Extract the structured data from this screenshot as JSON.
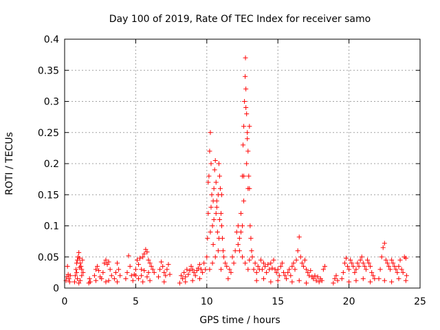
{
  "chart_data": {
    "type": "scatter",
    "title": "Day 100 of 2019, Rate Of TEC Index for receiver samo",
    "xlabel": "GPS time / hours",
    "ylabel": "ROTI / TECUs",
    "xlim": [
      0,
      25
    ],
    "ylim": [
      0,
      0.4
    ],
    "xticks": [
      0,
      5,
      10,
      15,
      20,
      25
    ],
    "xtick_labels": [
      "0",
      "5",
      "10",
      "15",
      "20",
      "25"
    ],
    "yticks": [
      0,
      0.05,
      0.1,
      0.15,
      0.2,
      0.25,
      0.3,
      0.35,
      0.4
    ],
    "ytick_labels": [
      "0",
      "0.05",
      "0.1",
      "0.15",
      "0.2",
      "0.25",
      "0.3",
      "0.35",
      "0.4"
    ],
    "grid": true,
    "marker": "+",
    "color": "#ff0000",
    "series": [
      {
        "name": "ROTI",
        "points": [
          [
            0.1,
            0.012
          ],
          [
            0.15,
            0.018
          ],
          [
            0.2,
            0.035
          ],
          [
            0.25,
            0.022
          ],
          [
            0.3,
            0.015
          ],
          [
            0.35,
            0.01
          ],
          [
            0.4,
            0.02
          ],
          [
            0.7,
            0.01
          ],
          [
            0.75,
            0.02
          ],
          [
            0.8,
            0.03
          ],
          [
            0.85,
            0.04
          ],
          [
            0.9,
            0.045
          ],
          [
            0.95,
            0.05
          ],
          [
            1.0,
            0.057
          ],
          [
            1.05,
            0.048
          ],
          [
            1.1,
            0.04
          ],
          [
            1.15,
            0.035
          ],
          [
            1.2,
            0.03
          ],
          [
            1.25,
            0.045
          ],
          [
            1.3,
            0.025
          ],
          [
            0.9,
            0.015
          ],
          [
            1.0,
            0.008
          ],
          [
            1.1,
            0.012
          ],
          [
            1.2,
            0.02
          ],
          [
            0.85,
            0.025
          ],
          [
            1.05,
            0.033
          ],
          [
            1.7,
            0.008
          ],
          [
            1.75,
            0.015
          ],
          [
            1.8,
            0.01
          ],
          [
            2.1,
            0.02
          ],
          [
            2.2,
            0.03
          ],
          [
            2.3,
            0.035
          ],
          [
            2.4,
            0.028
          ],
          [
            2.5,
            0.018
          ],
          [
            2.2,
            0.012
          ],
          [
            2.6,
            0.015
          ],
          [
            2.7,
            0.025
          ],
          [
            2.8,
            0.04
          ],
          [
            2.9,
            0.045
          ],
          [
            3.0,
            0.038
          ],
          [
            3.1,
            0.042
          ],
          [
            3.2,
            0.03
          ],
          [
            3.3,
            0.02
          ],
          [
            2.9,
            0.01
          ],
          [
            3.1,
            0.012
          ],
          [
            3.5,
            0.015
          ],
          [
            3.6,
            0.025
          ],
          [
            3.7,
            0.04
          ],
          [
            3.8,
            0.03
          ],
          [
            3.9,
            0.02
          ],
          [
            3.7,
            0.01
          ],
          [
            4.3,
            0.015
          ],
          [
            4.4,
            0.025
          ],
          [
            4.5,
            0.052
          ],
          [
            4.6,
            0.035
          ],
          [
            4.7,
            0.02
          ],
          [
            4.8,
            0.012
          ],
          [
            4.9,
            0.022
          ],
          [
            5.0,
            0.03
          ],
          [
            5.1,
            0.045
          ],
          [
            5.2,
            0.038
          ],
          [
            5.3,
            0.048
          ],
          [
            5.4,
            0.02
          ],
          [
            5.5,
            0.05
          ],
          [
            5.6,
            0.055
          ],
          [
            5.7,
            0.062
          ],
          [
            5.8,
            0.058
          ],
          [
            5.9,
            0.045
          ],
          [
            6.0,
            0.04
          ],
          [
            6.1,
            0.035
          ],
          [
            6.2,
            0.03
          ],
          [
            6.3,
            0.025
          ],
          [
            5.2,
            0.015
          ],
          [
            5.5,
            0.01
          ],
          [
            5.8,
            0.018
          ],
          [
            6.0,
            0.012
          ],
          [
            5.0,
            0.02
          ],
          [
            5.4,
            0.03
          ],
          [
            5.6,
            0.028
          ],
          [
            5.9,
            0.025
          ],
          [
            6.6,
            0.018
          ],
          [
            6.7,
            0.03
          ],
          [
            6.8,
            0.042
          ],
          [
            6.9,
            0.035
          ],
          [
            7.0,
            0.025
          ],
          [
            7.1,
            0.02
          ],
          [
            7.2,
            0.03
          ],
          [
            7.3,
            0.038
          ],
          [
            7.4,
            0.022
          ],
          [
            7.0,
            0.01
          ],
          [
            8.1,
            0.008
          ],
          [
            8.2,
            0.02
          ],
          [
            8.3,
            0.015
          ],
          [
            8.4,
            0.025
          ],
          [
            8.5,
            0.018
          ],
          [
            8.6,
            0.03
          ],
          [
            8.7,
            0.022
          ],
          [
            8.8,
            0.028
          ],
          [
            8.9,
            0.035
          ],
          [
            9.0,
            0.03
          ],
          [
            9.1,
            0.025
          ],
          [
            9.2,
            0.02
          ],
          [
            9.3,
            0.028
          ],
          [
            9.4,
            0.032
          ],
          [
            9.5,
            0.038
          ],
          [
            9.6,
            0.03
          ],
          [
            9.7,
            0.025
          ],
          [
            9.8,
            0.04
          ],
          [
            9.9,
            0.03
          ],
          [
            8.5,
            0.01
          ],
          [
            9.0,
            0.012
          ],
          [
            9.5,
            0.015
          ],
          [
            10.0,
            0.05
          ],
          [
            10.05,
            0.08
          ],
          [
            10.1,
            0.12
          ],
          [
            10.15,
            0.18
          ],
          [
            10.2,
            0.22
          ],
          [
            10.25,
            0.25
          ],
          [
            10.3,
            0.2
          ],
          [
            10.35,
            0.15
          ],
          [
            10.4,
            0.1
          ],
          [
            10.45,
            0.14
          ],
          [
            10.5,
            0.16
          ],
          [
            10.55,
            0.19
          ],
          [
            10.6,
            0.205
          ],
          [
            10.65,
            0.17
          ],
          [
            10.7,
            0.13
          ],
          [
            10.75,
            0.09
          ],
          [
            10.8,
            0.15
          ],
          [
            10.85,
            0.2
          ],
          [
            10.9,
            0.18
          ],
          [
            10.95,
            0.16
          ],
          [
            11.0,
            0.12
          ],
          [
            11.05,
            0.1
          ],
          [
            11.1,
            0.08
          ],
          [
            11.15,
            0.06
          ],
          [
            11.2,
            0.05
          ],
          [
            11.3,
            0.04
          ],
          [
            11.4,
            0.035
          ],
          [
            10.2,
            0.03
          ],
          [
            10.4,
            0.04
          ],
          [
            10.6,
            0.05
          ],
          [
            10.8,
            0.06
          ],
          [
            11.0,
            0.03
          ],
          [
            10.3,
            0.13
          ],
          [
            10.5,
            0.11
          ],
          [
            10.7,
            0.14
          ],
          [
            10.9,
            0.11
          ],
          [
            11.05,
            0.15
          ],
          [
            10.1,
            0.17
          ],
          [
            10.25,
            0.09
          ],
          [
            10.45,
            0.07
          ],
          [
            10.65,
            0.12
          ],
          [
            10.85,
            0.08
          ],
          [
            11.5,
            0.015
          ],
          [
            11.6,
            0.03
          ],
          [
            11.7,
            0.025
          ],
          [
            11.8,
            0.05
          ],
          [
            11.9,
            0.04
          ],
          [
            12.0,
            0.06
          ],
          [
            12.1,
            0.09
          ],
          [
            12.2,
            0.07
          ],
          [
            12.3,
            0.08
          ],
          [
            12.4,
            0.12
          ],
          [
            12.5,
            0.18
          ],
          [
            12.55,
            0.23
          ],
          [
            12.6,
            0.26
          ],
          [
            12.65,
            0.3
          ],
          [
            12.7,
            0.34
          ],
          [
            12.72,
            0.37
          ],
          [
            12.75,
            0.32
          ],
          [
            12.8,
            0.28
          ],
          [
            12.85,
            0.25
          ],
          [
            12.9,
            0.22
          ],
          [
            12.95,
            0.18
          ],
          [
            13.0,
            0.16
          ],
          [
            13.05,
            0.1
          ],
          [
            13.1,
            0.08
          ],
          [
            13.15,
            0.06
          ],
          [
            13.2,
            0.05
          ],
          [
            12.5,
            0.1
          ],
          [
            12.6,
            0.14
          ],
          [
            12.8,
            0.2
          ],
          [
            12.9,
            0.16
          ],
          [
            12.3,
            0.06
          ],
          [
            12.5,
            0.05
          ],
          [
            12.7,
            0.04
          ],
          [
            12.9,
            0.03
          ],
          [
            13.0,
            0.045
          ],
          [
            12.6,
            0.18
          ],
          [
            12.75,
            0.29
          ],
          [
            12.85,
            0.24
          ],
          [
            13.0,
            0.26
          ],
          [
            12.4,
            0.09
          ],
          [
            12.2,
            0.1
          ],
          [
            13.3,
            0.03
          ],
          [
            13.4,
            0.04
          ],
          [
            13.5,
            0.025
          ],
          [
            13.6,
            0.035
          ],
          [
            13.7,
            0.03
          ],
          [
            13.8,
            0.045
          ],
          [
            13.9,
            0.03
          ],
          [
            14.0,
            0.04
          ],
          [
            14.1,
            0.035
          ],
          [
            14.2,
            0.025
          ],
          [
            14.3,
            0.038
          ],
          [
            14.4,
            0.03
          ],
          [
            14.5,
            0.04
          ],
          [
            14.6,
            0.032
          ],
          [
            14.7,
            0.045
          ],
          [
            14.8,
            0.03
          ],
          [
            14.9,
            0.025
          ],
          [
            15.0,
            0.03
          ],
          [
            15.1,
            0.02
          ],
          [
            15.2,
            0.035
          ],
          [
            15.3,
            0.04
          ],
          [
            15.4,
            0.025
          ],
          [
            15.5,
            0.02
          ],
          [
            13.5,
            0.012
          ],
          [
            14.0,
            0.015
          ],
          [
            14.5,
            0.01
          ],
          [
            15.0,
            0.012
          ],
          [
            15.6,
            0.015
          ],
          [
            15.7,
            0.025
          ],
          [
            15.8,
            0.03
          ],
          [
            15.9,
            0.02
          ],
          [
            16.0,
            0.035
          ],
          [
            16.1,
            0.04
          ],
          [
            16.2,
            0.03
          ],
          [
            16.3,
            0.045
          ],
          [
            16.4,
            0.06
          ],
          [
            16.5,
            0.082
          ],
          [
            16.6,
            0.05
          ],
          [
            16.7,
            0.04
          ],
          [
            16.8,
            0.035
          ],
          [
            16.9,
            0.045
          ],
          [
            17.0,
            0.03
          ],
          [
            17.1,
            0.025
          ],
          [
            17.2,
            0.02
          ],
          [
            17.3,
            0.028
          ],
          [
            17.4,
            0.018
          ],
          [
            17.5,
            0.015
          ],
          [
            17.6,
            0.02
          ],
          [
            17.7,
            0.012
          ],
          [
            17.8,
            0.018
          ],
          [
            17.9,
            0.01
          ],
          [
            18.0,
            0.015
          ],
          [
            18.1,
            0.012
          ],
          [
            18.2,
            0.03
          ],
          [
            18.3,
            0.035
          ],
          [
            16.0,
            0.01
          ],
          [
            16.5,
            0.012
          ],
          [
            17.0,
            0.008
          ],
          [
            18.9,
            0.008
          ],
          [
            19.0,
            0.015
          ],
          [
            19.1,
            0.02
          ],
          [
            19.2,
            0.012
          ],
          [
            19.5,
            0.015
          ],
          [
            19.6,
            0.025
          ],
          [
            19.7,
            0.04
          ],
          [
            19.8,
            0.048
          ],
          [
            19.9,
            0.035
          ],
          [
            20.0,
            0.03
          ],
          [
            20.1,
            0.045
          ],
          [
            20.2,
            0.04
          ],
          [
            20.3,
            0.035
          ],
          [
            20.4,
            0.025
          ],
          [
            20.5,
            0.03
          ],
          [
            20.6,
            0.04
          ],
          [
            20.7,
            0.035
          ],
          [
            20.8,
            0.045
          ],
          [
            20.9,
            0.05
          ],
          [
            21.0,
            0.04
          ],
          [
            21.1,
            0.035
          ],
          [
            21.2,
            0.03
          ],
          [
            21.3,
            0.045
          ],
          [
            21.4,
            0.04
          ],
          [
            21.5,
            0.035
          ],
          [
            21.6,
            0.025
          ],
          [
            21.7,
            0.02
          ],
          [
            21.8,
            0.015
          ],
          [
            20.0,
            0.01
          ],
          [
            20.5,
            0.012
          ],
          [
            21.0,
            0.015
          ],
          [
            21.5,
            0.01
          ],
          [
            22.1,
            0.015
          ],
          [
            22.2,
            0.03
          ],
          [
            22.3,
            0.05
          ],
          [
            22.4,
            0.065
          ],
          [
            22.5,
            0.072
          ],
          [
            22.6,
            0.045
          ],
          [
            22.7,
            0.04
          ],
          [
            22.8,
            0.035
          ],
          [
            22.9,
            0.03
          ],
          [
            23.0,
            0.045
          ],
          [
            23.1,
            0.04
          ],
          [
            23.2,
            0.035
          ],
          [
            23.3,
            0.03
          ],
          [
            23.4,
            0.025
          ],
          [
            23.5,
            0.035
          ],
          [
            23.6,
            0.045
          ],
          [
            23.7,
            0.03
          ],
          [
            23.8,
            0.025
          ],
          [
            23.9,
            0.05
          ],
          [
            24.0,
            0.048
          ],
          [
            24.05,
            0.02
          ],
          [
            22.5,
            0.012
          ],
          [
            23.0,
            0.01
          ],
          [
            23.5,
            0.015
          ],
          [
            24.0,
            0.012
          ]
        ]
      }
    ]
  }
}
